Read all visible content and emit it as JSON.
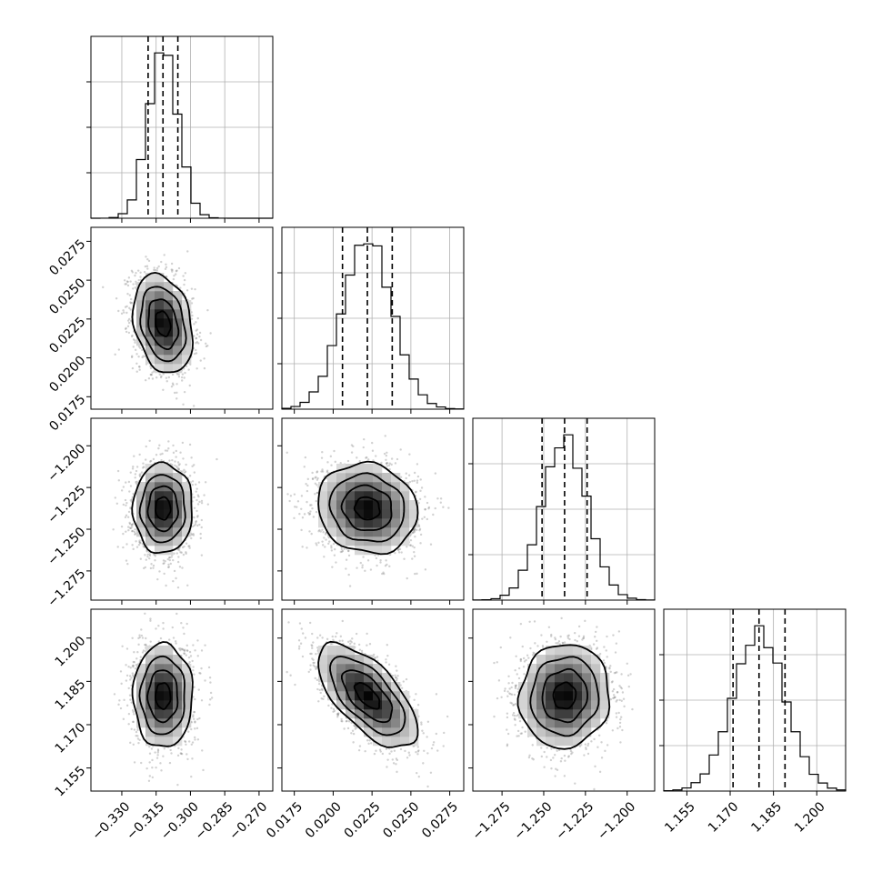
{
  "chart_data": {
    "type": "corner",
    "title": "",
    "parameters": [
      {
        "label": "",
        "mean": -0.312,
        "std": 0.0065,
        "range": [
          -0.3435,
          -0.264
        ],
        "ticks": [
          -0.33,
          -0.315,
          -0.3,
          -0.285,
          -0.27
        ],
        "tick_labels": [
          "−0.330",
          "−0.315",
          "−0.300",
          "−0.285",
          "−0.270"
        ],
        "quantiles": [
          -0.3185,
          -0.312,
          -0.3055
        ]
      },
      {
        "label": "",
        "mean": 0.0222,
        "std": 0.0016,
        "range": [
          0.0167,
          0.0284
        ],
        "ticks": [
          0.0175,
          0.02,
          0.0225,
          0.025,
          0.0275
        ],
        "tick_labels": [
          "0.0175",
          "0.0200",
          "0.0225",
          "0.0250",
          "0.0275"
        ],
        "quantiles": [
          0.0206,
          0.0222,
          0.0238
        ]
      },
      {
        "label": "",
        "mean": -1.2375,
        "std": 0.0135,
        "range": [
          -1.2925,
          -1.1835
        ],
        "ticks": [
          -1.275,
          -1.25,
          -1.225,
          -1.2
        ],
        "tick_labels": [
          "−1.275",
          "−1.250",
          "−1.225",
          "−1.200"
        ],
        "quantiles": [
          -1.251,
          -1.2375,
          -1.224
        ]
      },
      {
        "label": "",
        "mean": 1.18,
        "std": 0.009,
        "range": [
          1.147,
          1.21
        ],
        "ticks": [
          1.155,
          1.17,
          1.185,
          1.2
        ],
        "tick_labels": [
          "1.155",
          "1.170",
          "1.185",
          "1.200"
        ],
        "quantiles": [
          1.171,
          1.18,
          1.189
        ]
      }
    ],
    "correlations": [
      {
        "x": 0,
        "y": 1,
        "rho": -0.25
      },
      {
        "x": 0,
        "y": 2,
        "rho": 0.0
      },
      {
        "x": 1,
        "y": 2,
        "rho": -0.1
      },
      {
        "x": 0,
        "y": 3,
        "rho": 0.0
      },
      {
        "x": 1,
        "y": 3,
        "rho": -0.65
      },
      {
        "x": 2,
        "y": 3,
        "rho": 0.05
      }
    ],
    "contour_levels_sigma": [
      0.5,
      1.0,
      1.5,
      2.0
    ],
    "grid": true,
    "histogram_bins": 20
  }
}
